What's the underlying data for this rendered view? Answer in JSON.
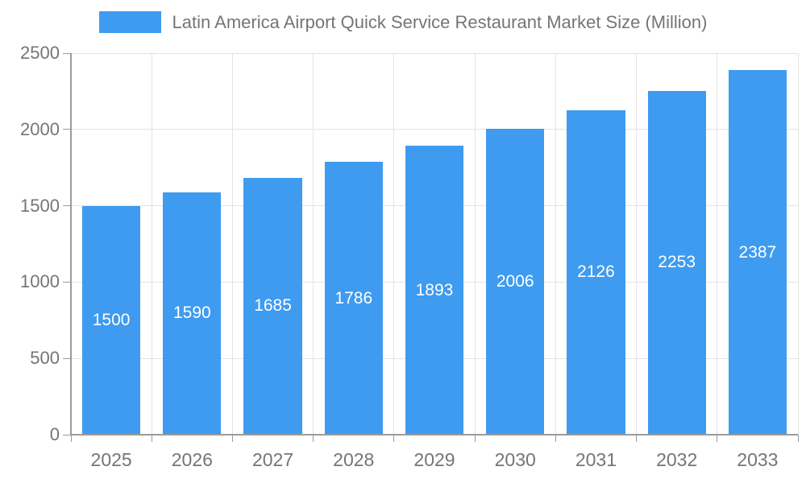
{
  "chart_data": {
    "type": "bar",
    "title": "Latin America Airport Quick Service Restaurant Market Size (Million)",
    "categories": [
      "2025",
      "2026",
      "2027",
      "2028",
      "2029",
      "2030",
      "2031",
      "2032",
      "2033"
    ],
    "values": [
      1500,
      1590,
      1685,
      1786,
      1893,
      2006,
      2126,
      2253,
      2387
    ],
    "xlabel": "",
    "ylabel": "",
    "ylim": [
      0,
      2500
    ],
    "yticks": [
      0,
      500,
      1000,
      1500,
      2000,
      2500
    ],
    "grid": true,
    "legend_position": "top-center",
    "bar_labels_inside": true,
    "colors": {
      "bar": "#3e9bf0",
      "grid": "#e3e3e3",
      "axis_line": "#9b9b9b",
      "text": "#757575",
      "bar_label": "#ffffff"
    }
  }
}
